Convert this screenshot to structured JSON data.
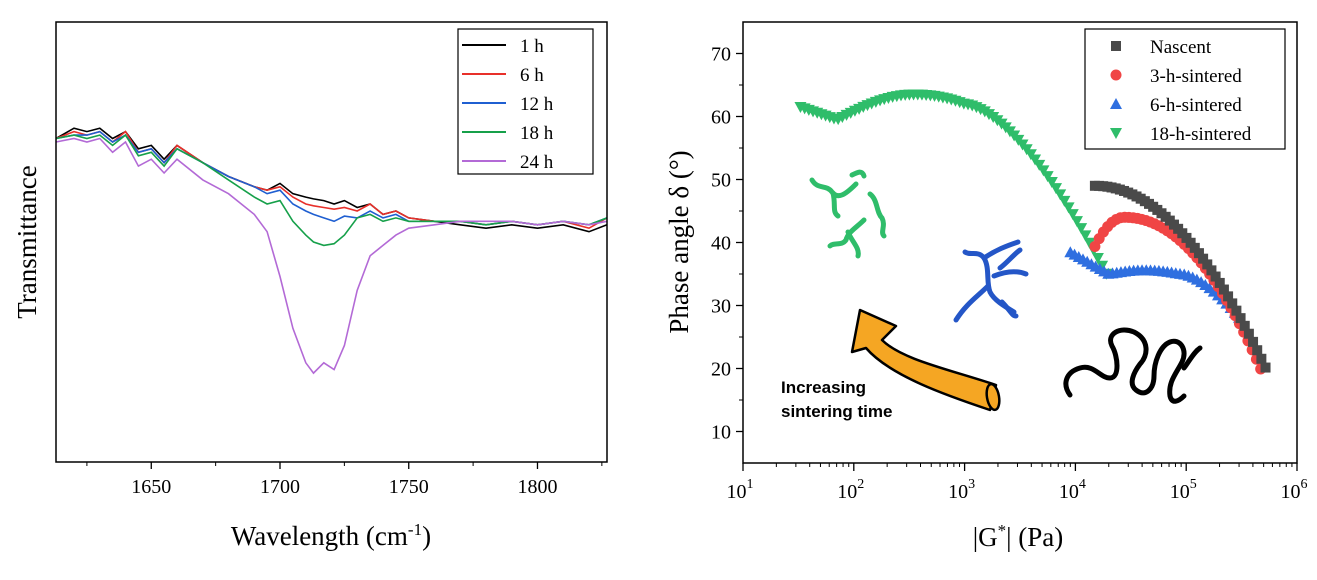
{
  "chart_data": [
    {
      "type": "line",
      "title": "",
      "xlabel": "Wavelength (cm-1)",
      "xlabel_main": "Wavelength (cm",
      "xlabel_sup": "-1",
      "xlabel_close": ")",
      "ylabel": "Transmittance",
      "xlim": [
        1613,
        1827
      ],
      "ylim": [
        0,
        100
      ],
      "yticks_shown": false,
      "xticks": [
        1650,
        1700,
        1750,
        1800
      ],
      "legend_position": "top-right",
      "x": [
        1613,
        1620,
        1625,
        1630,
        1635,
        1640,
        1645,
        1650,
        1655,
        1660,
        1670,
        1680,
        1690,
        1695,
        1700,
        1705,
        1710,
        1713,
        1717,
        1721,
        1725,
        1730,
        1735,
        1740,
        1745,
        1750,
        1760,
        1770,
        1780,
        1790,
        1800,
        1810,
        1820,
        1827
      ],
      "series": [
        {
          "name": "1 h",
          "color": "#000000",
          "values": [
            70,
            73,
            72,
            73,
            70,
            72,
            67,
            68,
            64,
            68,
            63,
            59,
            56,
            55,
            57,
            54,
            53,
            52.5,
            52,
            51,
            52,
            50,
            51,
            48,
            49,
            47,
            46,
            45,
            44,
            45,
            44,
            45,
            43,
            45
          ]
        },
        {
          "name": "6 h",
          "color": "#e8302a",
          "values": [
            70,
            72,
            71,
            72,
            69,
            72,
            66,
            67,
            63,
            68,
            63,
            59,
            56,
            55,
            56,
            53,
            51,
            50.5,
            50,
            49.5,
            50,
            49,
            51,
            48,
            49,
            47,
            46,
            46,
            45,
            46,
            45,
            46,
            44,
            47
          ]
        },
        {
          "name": "12 h",
          "color": "#1f5fd1",
          "values": [
            70,
            71,
            71,
            72,
            69,
            71,
            66,
            67,
            63,
            67,
            63,
            59,
            56,
            54,
            55,
            51,
            49,
            48,
            47,
            46,
            47.5,
            47,
            49,
            47,
            48,
            46,
            46,
            46,
            45,
            46,
            45,
            46,
            45,
            47
          ]
        },
        {
          "name": "18 h",
          "color": "#16a04a",
          "values": [
            70,
            71,
            70,
            71,
            68,
            71,
            65,
            66,
            62,
            67,
            63,
            58,
            53,
            51,
            52,
            46,
            42,
            40,
            39,
            39.5,
            42,
            47,
            48,
            46,
            47,
            46,
            46,
            46,
            45,
            46,
            45,
            46,
            45,
            47
          ]
        },
        {
          "name": "24 h",
          "color": "#b36ad6",
          "values": [
            69,
            70,
            69,
            70,
            66,
            69,
            62,
            64,
            60,
            64,
            58,
            54,
            48,
            43,
            30,
            15,
            5,
            2,
            5,
            3,
            10,
            26,
            36,
            39,
            42,
            44,
            45,
            46,
            46,
            46,
            45,
            46,
            45,
            46
          ]
        }
      ]
    },
    {
      "type": "scatter",
      "title": "",
      "xlabel": "|G*| (Pa)",
      "xlabel_pre": "|G",
      "xlabel_sup": "*",
      "xlabel_post": "| (Pa)",
      "ylabel": "Phase angle δ (°)",
      "xscale": "log",
      "xlim": [
        10,
        1000000
      ],
      "ylim": [
        5,
        75
      ],
      "xticks": [
        {
          "base": "10",
          "exp": "1"
        },
        {
          "base": "10",
          "exp": "2"
        },
        {
          "base": "10",
          "exp": "3"
        },
        {
          "base": "10",
          "exp": "4"
        },
        {
          "base": "10",
          "exp": "5"
        },
        {
          "base": "10",
          "exp": "6"
        }
      ],
      "yticks": [
        10,
        20,
        30,
        40,
        50,
        60,
        70
      ],
      "legend_position": "top-right",
      "series": [
        {
          "name": "Nascent",
          "color": "#4a4a4a",
          "marker": "square",
          "x_range": [
            15000,
            520000
          ],
          "curve": "nascent"
        },
        {
          "name": "3-h-sintered",
          "color": "#f04545",
          "marker": "circle",
          "x_range": [
            15000,
            470000
          ],
          "curve": "sint3"
        },
        {
          "name": "6-h-sintered",
          "color": "#2f6fe0",
          "marker": "triangle-up",
          "x_range": [
            9000,
            300000
          ],
          "curve": "sint6"
        },
        {
          "name": "18-h-sintered",
          "color": "#2fbd6a",
          "marker": "triangle-down",
          "x_range": [
            33,
            19000
          ],
          "curve": "sint18"
        }
      ],
      "annotation": {
        "line1": "Increasing",
        "line2": "sintering time",
        "arrow_color": "#f5a623"
      }
    }
  ]
}
